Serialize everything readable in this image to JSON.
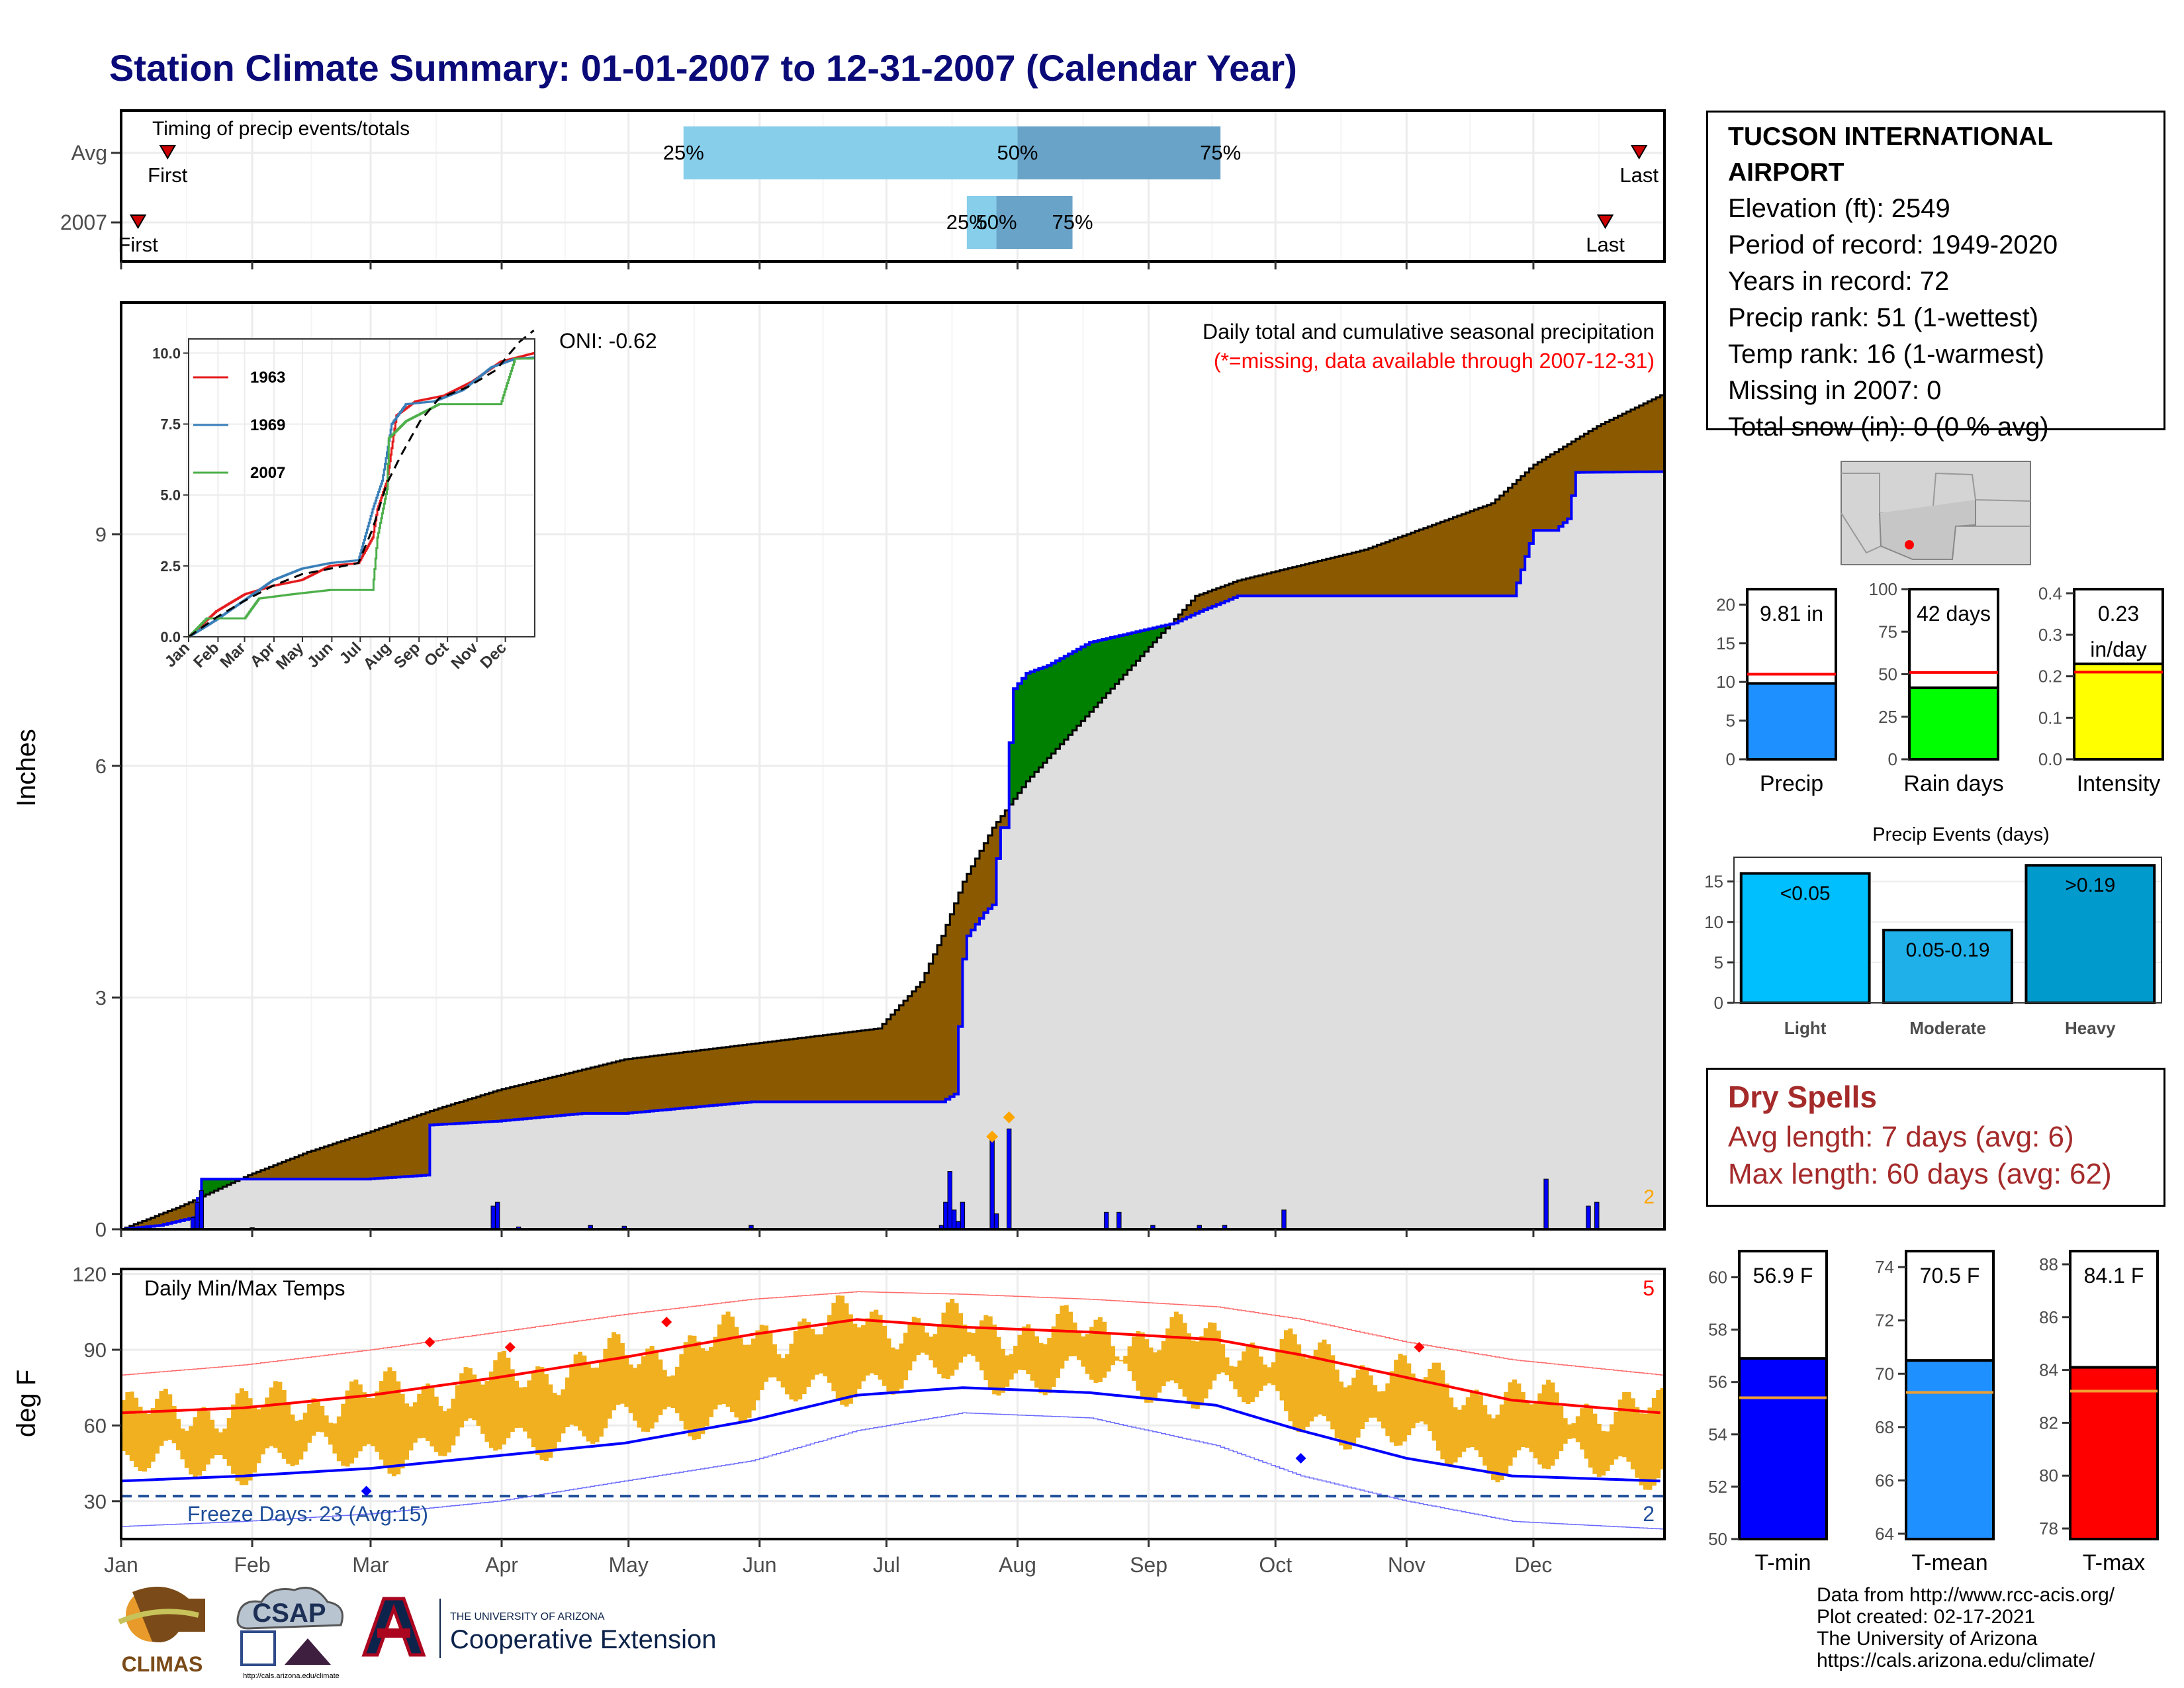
{
  "title": "Station Climate Summary: 01-01-2007 to 12-31-2007 (Calendar Year)",
  "station": {
    "name_line1": "TUCSON INTERNATIONAL",
    "name_line2": "AIRPORT",
    "elevation": "Elevation (ft): 2549",
    "period": "Period of record: 1949-2020",
    "years": "Years in record: 72",
    "precip_rank": "Precip rank: 51 (1-wettest)",
    "temp_rank": "Temp rank: 16 (1-warmest)",
    "missing": "Missing in 2007: 0",
    "snow": "Total snow (in): 0 (0 % avg)"
  },
  "dry_spells": {
    "title": "Dry Spells",
    "avg": "Avg length: 7 days (avg: 6)",
    "max": "Max length: 60 days (avg: 62)"
  },
  "credits": {
    "line1": "Data from http://www.rcc-acis.org/",
    "line2": "Plot created: 02-17-2021",
    "line3": "The University of Arizona",
    "line4": "https://cals.arizona.edu/climate/"
  },
  "logos": {
    "climas": "CLIMAS",
    "csap": "CSAP",
    "csap_url": "http://cals.arizona.edu/climate",
    "ua_small": "THE UNIVERSITY OF ARIZONA",
    "ua_big": "Cooperative Extension"
  },
  "colors": {
    "dark_blue_title": "#0a0a78",
    "cum_brown": "#8b5a00",
    "cum_green": "#008000",
    "cum_fill": "#dedede",
    "precip_blue": "#0000ff",
    "marker_orange": "#ffa500",
    "q_light": "#87ceeb",
    "q_dark": "#6aa3c8",
    "temp_bar": "#f0b020",
    "tmax": "#ff0000",
    "tmin": "#0000ff",
    "freeze": "#1f4e99",
    "brown_text": "#a52a2a"
  },
  "chart_data": [
    {
      "id": "timing",
      "type": "bar",
      "title": "Timing of precip events/totals",
      "months": [
        "Jan",
        "Feb",
        "Mar",
        "Apr",
        "May",
        "Jun",
        "Jul",
        "Aug",
        "Sep",
        "Oct",
        "Nov",
        "Dec"
      ],
      "rows": [
        {
          "label": "Avg",
          "first": "2007-01-12",
          "last": "2007-12-26",
          "q25": "2007-05-14",
          "q50": "2007-08-01",
          "q75": "2007-09-18",
          "first_label": "First",
          "last_label": "Last",
          "q25_label": "25%",
          "q50_label": "50%",
          "q75_label": "75%"
        },
        {
          "label": "2007",
          "first": "2007-01-05",
          "last": "2007-12-18",
          "q25": "2007-07-20",
          "q50": "2007-07-27",
          "q75": "2007-08-14",
          "first_label": "First",
          "last_label": "Last",
          "q25_label": "25%",
          "q50_label": "50%",
          "q75_label": "75%"
        }
      ]
    },
    {
      "id": "precip",
      "type": "area",
      "title": "Daily total and cumulative seasonal precipitation",
      "subtitle": "(*=missing, data available through 2007-12-31)",
      "ylabel": "Inches",
      "ylim": [
        0,
        12
      ],
      "yticks": [
        0,
        3,
        6,
        9
      ],
      "oni": "ONI: -0.62",
      "corner_count": "2",
      "avg_cumulative": [
        [
          1,
          0
        ],
        [
          15,
          0.3
        ],
        [
          31,
          0.7
        ],
        [
          45,
          1.0
        ],
        [
          59,
          1.25
        ],
        [
          75,
          1.55
        ],
        [
          90,
          1.8
        ],
        [
          105,
          2.0
        ],
        [
          120,
          2.2
        ],
        [
          135,
          2.3
        ],
        [
          150,
          2.4
        ],
        [
          165,
          2.5
        ],
        [
          180,
          2.6
        ],
        [
          185,
          2.9
        ],
        [
          190,
          3.2
        ],
        [
          195,
          3.8
        ],
        [
          200,
          4.5
        ],
        [
          207,
          5.2
        ],
        [
          215,
          5.8
        ],
        [
          225,
          6.4
        ],
        [
          235,
          7.0
        ],
        [
          245,
          7.6
        ],
        [
          255,
          8.2
        ],
        [
          265,
          8.4
        ],
        [
          280,
          8.6
        ],
        [
          295,
          8.8
        ],
        [
          310,
          9.1
        ],
        [
          325,
          9.4
        ],
        [
          335,
          9.9
        ],
        [
          350,
          10.4
        ],
        [
          365,
          10.8
        ]
      ],
      "obs_cumulative": [
        [
          1,
          0
        ],
        [
          10,
          0.05
        ],
        [
          18,
          0.15
        ],
        [
          20,
          0.65
        ],
        [
          59,
          0.65
        ],
        [
          73,
          0.7
        ],
        [
          74,
          1.35
        ],
        [
          90,
          1.4
        ],
        [
          100,
          1.45
        ],
        [
          110,
          1.5
        ],
        [
          120,
          1.5
        ],
        [
          150,
          1.65
        ],
        [
          195,
          1.65
        ],
        [
          198,
          1.75
        ],
        [
          200,
          3.5
        ],
        [
          201,
          3.8
        ],
        [
          205,
          4.1
        ],
        [
          207,
          4.2
        ],
        [
          208,
          4.8
        ],
        [
          209,
          5.2
        ],
        [
          210,
          5.2
        ],
        [
          211,
          6.3
        ],
        [
          212,
          7.0
        ],
        [
          215,
          7.2
        ],
        [
          220,
          7.3
        ],
        [
          230,
          7.6
        ],
        [
          238,
          7.7
        ],
        [
          250,
          7.85
        ],
        [
          256,
          8.0
        ],
        [
          265,
          8.2
        ],
        [
          280,
          8.2
        ],
        [
          290,
          8.2
        ],
        [
          330,
          8.2
        ],
        [
          335,
          9.05
        ],
        [
          340,
          9.05
        ],
        [
          343,
          9.2
        ],
        [
          345,
          9.8
        ],
        [
          365,
          9.81
        ]
      ],
      "daily_precip": [
        [
          18,
          0.15
        ],
        [
          19,
          0.35
        ],
        [
          20,
          0.5
        ],
        [
          32,
          0.02
        ],
        [
          48,
          0.01
        ],
        [
          89,
          0.3
        ],
        [
          90,
          0.35
        ],
        [
          95,
          0.03
        ],
        [
          112,
          0.05
        ],
        [
          120,
          0.04
        ],
        [
          150,
          0.05
        ],
        [
          195,
          0.05
        ],
        [
          196,
          0.35
        ],
        [
          197,
          0.75
        ],
        [
          198,
          0.25
        ],
        [
          199,
          0.1
        ],
        [
          200,
          0.35
        ],
        [
          207,
          1.15
        ],
        [
          208,
          0.2
        ],
        [
          211,
          1.3
        ],
        [
          234,
          0.22
        ],
        [
          237,
          0.22
        ],
        [
          245,
          0.05
        ],
        [
          256,
          0.05
        ],
        [
          262,
          0.05
        ],
        [
          276,
          0.25
        ],
        [
          338,
          0.65
        ],
        [
          348,
          0.3
        ],
        [
          350,
          0.35
        ]
      ],
      "markers": [
        [
          207,
          1.2
        ],
        [
          211,
          1.45
        ]
      ],
      "inset": {
        "type": "line",
        "months": [
          "Jan",
          "Feb",
          "Mar",
          "Apr",
          "May",
          "Jun",
          "Jul",
          "Aug",
          "Sep",
          "Oct",
          "Nov",
          "Dec"
        ],
        "yticks": [
          "0.0",
          "2.5",
          "5.0",
          "7.5",
          "10.0"
        ],
        "ylim": [
          0,
          10.5
        ],
        "series": [
          {
            "name": "1963",
            "color": "#e41a1c",
            "values": [
              [
                1,
                0
              ],
              [
                30,
                0.9
              ],
              [
                60,
                1.5
              ],
              [
                90,
                1.8
              ],
              [
                120,
                2.0
              ],
              [
                150,
                2.5
              ],
              [
                180,
                2.6
              ],
              [
                195,
                3.5
              ],
              [
                200,
                4.5
              ],
              [
                210,
                5.5
              ],
              [
                220,
                7.8
              ],
              [
                240,
                8.3
              ],
              [
                270,
                8.5
              ],
              [
                300,
                9.0
              ],
              [
                330,
                9.7
              ],
              [
                365,
                10.0
              ]
            ]
          },
          {
            "name": "1969",
            "color": "#377eb8",
            "values": [
              [
                1,
                0
              ],
              [
                30,
                0.6
              ],
              [
                60,
                1.3
              ],
              [
                90,
                2.0
              ],
              [
                120,
                2.4
              ],
              [
                150,
                2.6
              ],
              [
                180,
                2.7
              ],
              [
                195,
                4.5
              ],
              [
                205,
                5.5
              ],
              [
                215,
                7.5
              ],
              [
                230,
                8.2
              ],
              [
                260,
                8.3
              ],
              [
                290,
                8.7
              ],
              [
                320,
                9.5
              ],
              [
                345,
                9.8
              ],
              [
                365,
                9.85
              ]
            ]
          },
          {
            "name": "2007",
            "color": "#4daf4a",
            "values": [
              [
                1,
                0
              ],
              [
                20,
                0.65
              ],
              [
                60,
                0.65
              ],
              [
                75,
                1.35
              ],
              [
                110,
                1.5
              ],
              [
                150,
                1.65
              ],
              [
                195,
                1.65
              ],
              [
                200,
                3.5
              ],
              [
                210,
                5.2
              ],
              [
                212,
                7.0
              ],
              [
                230,
                7.6
              ],
              [
                265,
                8.2
              ],
              [
                330,
                8.2
              ],
              [
                345,
                9.8
              ],
              [
                365,
                9.81
              ]
            ]
          },
          {
            "name": "",
            "color": "#000000",
            "dashed": true,
            "values": [
              [
                1,
                0
              ],
              [
                31,
                0.7
              ],
              [
                59,
                1.25
              ],
              [
                90,
                1.8
              ],
              [
                120,
                2.2
              ],
              [
                150,
                2.4
              ],
              [
                180,
                2.6
              ],
              [
                195,
                3.8
              ],
              [
                210,
                5.4
              ],
              [
                225,
                6.4
              ],
              [
                245,
                7.6
              ],
              [
                265,
                8.4
              ],
              [
                295,
                8.8
              ],
              [
                325,
                9.4
              ],
              [
                350,
                10.4
              ],
              [
                365,
                10.8
              ]
            ]
          }
        ]
      }
    },
    {
      "id": "temps",
      "type": "line",
      "title": "Daily Min/Max Temps",
      "ylabel": "deg F",
      "ylim": [
        15,
        122
      ],
      "yticks": [
        30,
        60,
        90,
        120
      ],
      "freeze_label": "Freeze Days: 23 (Avg:15)",
      "freeze_line": 32,
      "count_top": "5",
      "count_bottom": "2",
      "months": [
        "Jan",
        "Feb",
        "Mar",
        "Apr",
        "May",
        "Jun",
        "Jul",
        "Aug",
        "Sep",
        "Oct",
        "Nov",
        "Dec"
      ],
      "avg_max": [
        [
          1,
          65
        ],
        [
          30,
          67
        ],
        [
          60,
          72
        ],
        [
          90,
          79
        ],
        [
          120,
          87
        ],
        [
          150,
          96
        ],
        [
          175,
          102
        ],
        [
          200,
          99
        ],
        [
          230,
          97
        ],
        [
          260,
          94
        ],
        [
          280,
          88
        ],
        [
          305,
          79
        ],
        [
          330,
          70
        ],
        [
          365,
          65
        ]
      ],
      "avg_min": [
        [
          1,
          38
        ],
        [
          30,
          40
        ],
        [
          60,
          43
        ],
        [
          90,
          48
        ],
        [
          120,
          53
        ],
        [
          150,
          62
        ],
        [
          175,
          72
        ],
        [
          200,
          75
        ],
        [
          230,
          73
        ],
        [
          260,
          68
        ],
        [
          280,
          58
        ],
        [
          305,
          47
        ],
        [
          330,
          40
        ],
        [
          365,
          38
        ]
      ],
      "rec_max": [
        [
          1,
          80
        ],
        [
          30,
          84
        ],
        [
          60,
          90
        ],
        [
          90,
          97
        ],
        [
          120,
          104
        ],
        [
          150,
          110
        ],
        [
          175,
          113
        ],
        [
          200,
          112
        ],
        [
          230,
          110
        ],
        [
          260,
          107
        ],
        [
          280,
          102
        ],
        [
          305,
          93
        ],
        [
          330,
          86
        ],
        [
          365,
          80
        ]
      ],
      "rec_min": [
        [
          1,
          20
        ],
        [
          30,
          22
        ],
        [
          60,
          25
        ],
        [
          90,
          30
        ],
        [
          120,
          38
        ],
        [
          150,
          46
        ],
        [
          175,
          58
        ],
        [
          200,
          65
        ],
        [
          230,
          63
        ],
        [
          260,
          52
        ],
        [
          280,
          40
        ],
        [
          305,
          30
        ],
        [
          330,
          22
        ],
        [
          365,
          19
        ]
      ],
      "high_markers": [
        [
          74,
          93
        ],
        [
          93,
          91
        ],
        [
          130,
          101
        ],
        [
          308,
          91
        ]
      ],
      "low_markers": [
        [
          59,
          34
        ],
        [
          280,
          47
        ]
      ]
    },
    {
      "id": "precip_total",
      "type": "bar",
      "label": "Precip",
      "value_label": "9.81 in",
      "value": 9.81,
      "avg": 11.0,
      "ylim": [
        0,
        22
      ],
      "yticks": [
        "0",
        "5",
        "10",
        "15",
        "20"
      ],
      "color": "#1e90ff"
    },
    {
      "id": "rain_days",
      "type": "bar",
      "label": "Rain days",
      "value_label": "42 days",
      "value": 42,
      "avg": 51,
      "ylim": [
        0,
        100
      ],
      "yticks": [
        "0",
        "25",
        "50",
        "75",
        "100"
      ],
      "color": "#00ff00"
    },
    {
      "id": "intensity",
      "type": "bar",
      "label": "Intensity",
      "value_label": "0.23",
      "value_label2": "in/day",
      "value": 0.23,
      "avg": 0.21,
      "ylim": [
        0,
        0.41
      ],
      "yticks": [
        "0.0",
        "0.1",
        "0.2",
        "0.3",
        "0.4"
      ],
      "color": "#ffff00"
    },
    {
      "id": "precip_events",
      "type": "bar",
      "title": "Precip Events (days)",
      "categories": [
        "Light",
        "Moderate",
        "Heavy"
      ],
      "values": [
        16,
        9,
        17
      ],
      "bar_labels": [
        "<0.05",
        "0.05-0.19",
        ">0.19"
      ],
      "colors": [
        "#00bfff",
        "#1fb0ea",
        "#009acd"
      ],
      "ylim": [
        0,
        18
      ],
      "yticks": [
        "0",
        "5",
        "10",
        "15"
      ]
    },
    {
      "id": "tmin",
      "type": "bar",
      "label": "T-min",
      "value_label": "56.9 F",
      "value": 56.9,
      "avg": 55.4,
      "ylim": [
        50,
        61
      ],
      "yticks": [
        "50",
        "52",
        "54",
        "56",
        "58",
        "60"
      ],
      "color": "#0000ff"
    },
    {
      "id": "tmean",
      "type": "bar",
      "label": "T-mean",
      "value_label": "70.5 F",
      "value": 70.5,
      "avg": 69.3,
      "ylim": [
        63.8,
        74.6
      ],
      "yticks": [
        "64",
        "66",
        "68",
        "70",
        "72",
        "74"
      ],
      "color": "#1e90ff"
    },
    {
      "id": "tmax",
      "type": "bar",
      "label": "T-max",
      "value_label": "84.1 F",
      "value": 84.1,
      "avg": 83.2,
      "ylim": [
        77.6,
        88.5
      ],
      "yticks": [
        "78",
        "80",
        "82",
        "84",
        "86",
        "88"
      ],
      "color": "#ff0000"
    }
  ]
}
